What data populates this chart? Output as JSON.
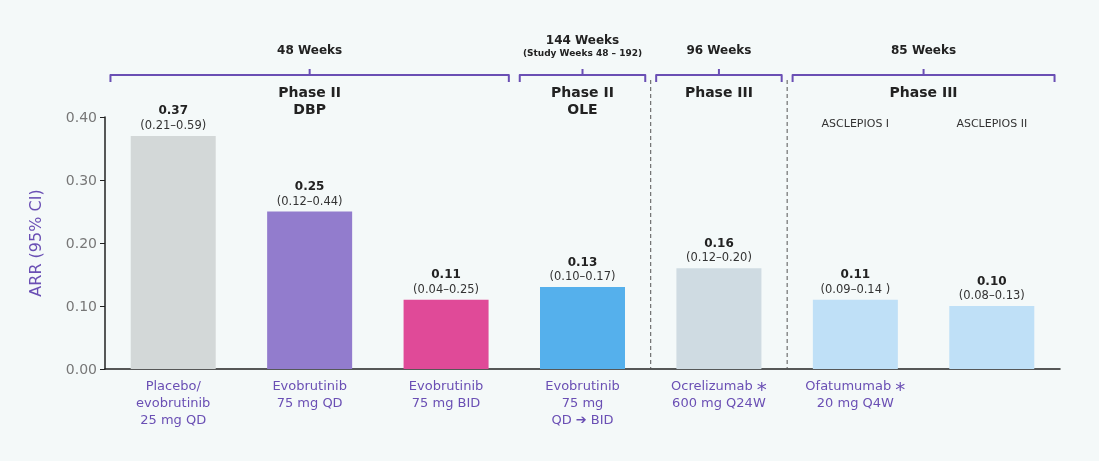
{
  "chart_data": {
    "type": "bar",
    "categories": [
      "Placebo/\nevobrutinib\n25 mg QD",
      "Evobrutinib\n75 mg QD",
      "Evobrutinib\n75 mg BID",
      "Evobrutinib\n75 mg\nQD ➔ BID",
      "Ocrelizumab *\n600 mg Q24W",
      "Ofatumumab *\n20 mg Q4W",
      null
    ],
    "values": [
      0.37,
      0.25,
      0.11,
      0.13,
      0.16,
      0.11,
      0.1
    ],
    "colors": [
      "#d3d8d8",
      "#927ccd",
      "#e04a98",
      "#55b0ec",
      "#cfdbe2",
      "#bfe0f7",
      "#bfe0f7"
    ],
    "value_labels": [
      "0.37 (0.21–0.59)",
      "0.25 (0.12–0.44)",
      "0.11 (0.04–0.25)",
      "0.13 (0.10–0.17)",
      "0.16 (0.12–0.20)",
      "0.11 (0.09–0.14 )",
      "0.10 (0.08–0.13)"
    ],
    "ylabel": "ARR (95% CI)",
    "ylim": [
      0,
      0.4
    ],
    "yticks": [
      {
        "value": 0,
        "label": "0.00"
      },
      {
        "value": 0.1,
        "label": "0.10"
      },
      {
        "value": 0.2,
        "label": "0.20"
      },
      {
        "value": 0.3,
        "label": "0.30"
      },
      {
        "value": 0.4,
        "label": "0.40"
      }
    ],
    "grid": false,
    "annotations": [
      "48 Weeks",
      "Phase II\nDBP",
      "144 Weeks",
      "(Study Weeks 48 – 192)",
      "Phase II\nOLE",
      "96 Weeks",
      "Phase III",
      "85 Weeks",
      "Phase III",
      "ASCLEPIOS I",
      "ASCLEPIOS II"
    ]
  }
}
